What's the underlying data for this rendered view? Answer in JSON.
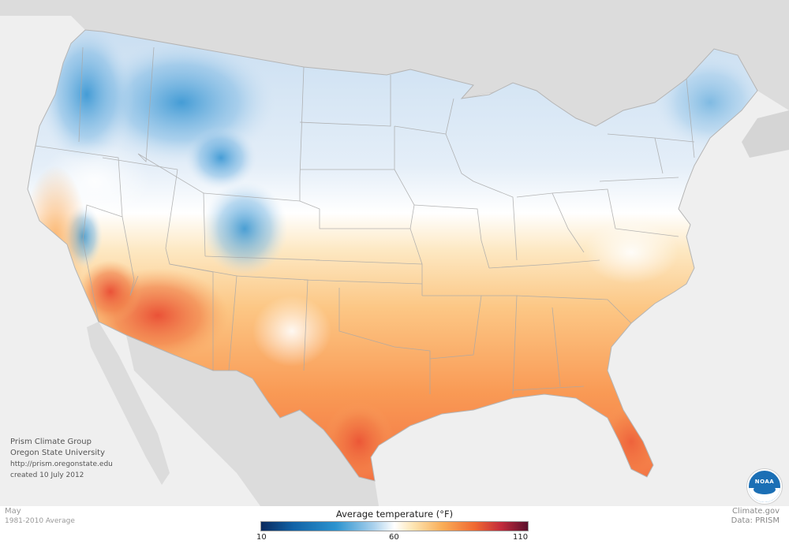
{
  "map": {
    "title": "Average temperature (°F)",
    "month": "May",
    "period": "1981-2010 Average",
    "legend": {
      "min": "10",
      "mid": "60",
      "max": "110"
    },
    "credits": [
      "Prism Climate Group",
      "Oregon State University",
      "http://prism.oregonstate.edu",
      "created 10 July 2012"
    ],
    "source": {
      "site": "Climate.gov",
      "data": "Data: PRISM"
    },
    "colors": {
      "cold": "#1f8ad0",
      "cool": "#cfe2f3",
      "neutral": "#ffffff",
      "warm": "#fcc27a",
      "hot": "#f0623a",
      "land_outside": "#dcdcdc",
      "water": "#efefef"
    },
    "logo": "noaa-logo"
  }
}
